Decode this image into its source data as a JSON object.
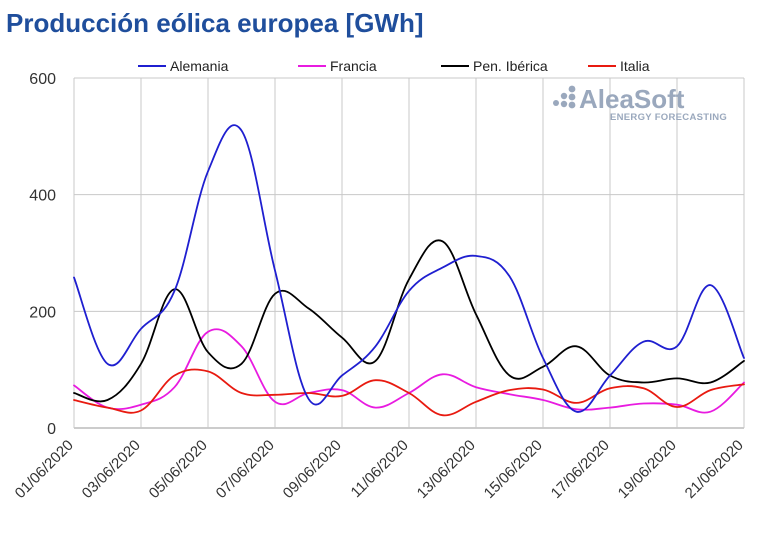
{
  "title": "Producción eólica europea [GWh]",
  "logo": {
    "name": "AleaSoft",
    "tagline": "ENERGY FORECASTING"
  },
  "chart_data": {
    "type": "line",
    "title": "Producción eólica europea [GWh]",
    "xlabel": "",
    "ylabel": "",
    "ylim": [
      0,
      600
    ],
    "yticks": [
      0,
      200,
      400,
      600
    ],
    "grid": true,
    "legend_position": "top",
    "x": [
      "01/06/2020",
      "02/06/2020",
      "03/06/2020",
      "04/06/2020",
      "05/06/2020",
      "06/06/2020",
      "07/06/2020",
      "08/06/2020",
      "09/06/2020",
      "10/06/2020",
      "11/06/2020",
      "12/06/2020",
      "13/06/2020",
      "14/06/2020",
      "15/06/2020",
      "16/06/2020",
      "17/06/2020",
      "18/06/2020",
      "19/06/2020",
      "20/06/2020",
      "21/06/2020"
    ],
    "x_tick_labels": [
      "01/06/2020",
      "03/06/2020",
      "05/06/2020",
      "07/06/2020",
      "09/06/2020",
      "11/06/2020",
      "13/06/2020",
      "15/06/2020",
      "17/06/2020",
      "19/06/2020",
      "21/06/2020"
    ],
    "series": [
      {
        "name": "Alemania",
        "color": "#1f1fd0",
        "values": [
          258,
          110,
          170,
          235,
          440,
          510,
          270,
          50,
          90,
          140,
          235,
          275,
          295,
          260,
          120,
          28,
          90,
          148,
          140,
          245,
          120
        ]
      },
      {
        "name": "Francia",
        "color": "#e81be0",
        "values": [
          73,
          35,
          40,
          70,
          165,
          140,
          45,
          60,
          65,
          35,
          60,
          92,
          70,
          58,
          48,
          32,
          35,
          42,
          40,
          28,
          78
        ]
      },
      {
        "name": "Pen. Ibérica",
        "color": "#000000",
        "values": [
          60,
          48,
          110,
          238,
          130,
          110,
          230,
          205,
          155,
          115,
          255,
          320,
          195,
          90,
          105,
          140,
          90,
          78,
          85,
          78,
          115
        ]
      },
      {
        "name": "Italia",
        "color": "#e81a10",
        "values": [
          48,
          35,
          30,
          90,
          97,
          60,
          57,
          60,
          55,
          82,
          60,
          22,
          45,
          65,
          66,
          43,
          68,
          68,
          36,
          65,
          75
        ]
      }
    ]
  }
}
